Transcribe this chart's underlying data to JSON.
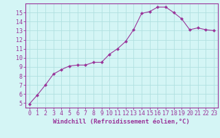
{
  "x": [
    0,
    1,
    2,
    3,
    4,
    5,
    6,
    7,
    8,
    9,
    10,
    11,
    12,
    13,
    14,
    15,
    16,
    17,
    18,
    19,
    20,
    21,
    22,
    23
  ],
  "y": [
    4.9,
    5.9,
    7.0,
    8.2,
    8.7,
    9.1,
    9.2,
    9.2,
    9.5,
    9.5,
    10.4,
    11.0,
    11.8,
    13.1,
    14.9,
    15.1,
    15.6,
    15.6,
    15.0,
    14.3,
    13.1,
    13.3,
    13.1,
    13.0
  ],
  "line_color": "#993399",
  "marker": "D",
  "marker_size": 2.2,
  "xlabel": "Windchill (Refroidissement éolien,°C)",
  "xlim": [
    -0.5,
    23.5
  ],
  "ylim": [
    4.5,
    16.0
  ],
  "yticks": [
    5,
    6,
    7,
    8,
    9,
    10,
    11,
    12,
    13,
    14,
    15
  ],
  "xticks": [
    0,
    1,
    2,
    3,
    4,
    5,
    6,
    7,
    8,
    9,
    10,
    11,
    12,
    13,
    14,
    15,
    16,
    17,
    18,
    19,
    20,
    21,
    22,
    23
  ],
  "bg_color": "#d4f5f5",
  "grid_color": "#b0e0e0",
  "axis_color": "#993399",
  "tick_color": "#993399",
  "label_color": "#993399",
  "xlabel_fontsize": 6.5,
  "tick_fontsize": 6.0
}
